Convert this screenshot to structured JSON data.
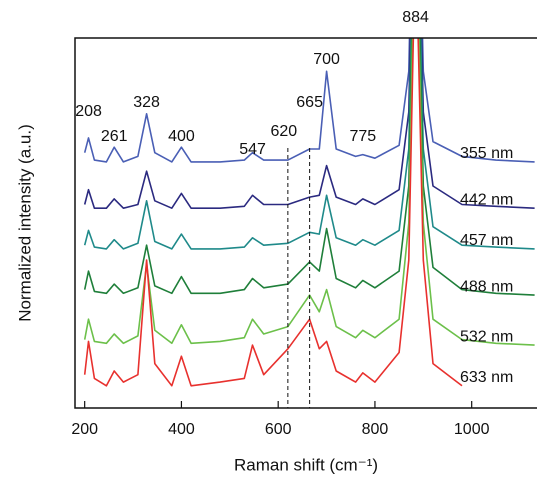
{
  "chart_data": {
    "type": "line",
    "x_label": "Raman shift (cm⁻¹)",
    "y_label": "Normalized intensity (a.u.)",
    "x": [
      200,
      208,
      220,
      245,
      261,
      280,
      310,
      328,
      345,
      380,
      400,
      420,
      480,
      530,
      547,
      570,
      620,
      665,
      685,
      700,
      720,
      760,
      775,
      800,
      850,
      870,
      884,
      900,
      920,
      980,
      1050,
      1130
    ],
    "xlim": [
      180,
      1135
    ],
    "xticks": [
      200,
      400,
      600,
      800,
      1000
    ],
    "ylim": [
      0,
      10
    ],
    "series": [
      {
        "name": "355 nm",
        "color": "#4a5fb5",
        "values": [
          6.9,
          7.3,
          6.7,
          6.65,
          7.05,
          6.65,
          6.8,
          7.95,
          6.9,
          6.65,
          7.05,
          6.65,
          6.65,
          6.7,
          6.9,
          6.7,
          6.7,
          7.0,
          7.0,
          9.1,
          7.0,
          6.8,
          6.85,
          6.75,
          7.1,
          9.1,
          18,
          9.1,
          7.2,
          6.8,
          6.7,
          6.65
        ]
      },
      {
        "name": "442 nm",
        "color": "#2b2a80",
        "values": [
          5.5,
          5.9,
          5.4,
          5.4,
          5.65,
          5.4,
          5.5,
          6.4,
          5.6,
          5.4,
          5.8,
          5.4,
          5.4,
          5.45,
          5.75,
          5.5,
          5.5,
          5.7,
          5.75,
          6.55,
          5.7,
          5.5,
          5.65,
          5.5,
          5.9,
          8,
          17,
          8,
          6,
          5.5,
          5.45,
          5.4
        ]
      },
      {
        "name": "457 nm",
        "color": "#1f8a8a",
        "values": [
          4.4,
          4.8,
          4.35,
          4.3,
          4.55,
          4.3,
          4.45,
          5.6,
          4.5,
          4.3,
          4.7,
          4.3,
          4.3,
          4.35,
          4.6,
          4.4,
          4.45,
          4.75,
          4.7,
          5.75,
          4.6,
          4.4,
          4.55,
          4.4,
          4.8,
          7,
          16,
          7,
          4.9,
          4.4,
          4.35,
          4.3
        ]
      },
      {
        "name": "488 nm",
        "color": "#1f7f3a",
        "values": [
          3.2,
          3.7,
          3.15,
          3.1,
          3.35,
          3.1,
          3.25,
          4.4,
          3.3,
          3.1,
          3.55,
          3.1,
          3.1,
          3.2,
          3.5,
          3.25,
          3.35,
          3.95,
          3.7,
          4.85,
          3.5,
          3.25,
          3.45,
          3.25,
          3.7,
          6,
          15,
          6,
          3.8,
          3.2,
          3.1,
          3.05
        ]
      },
      {
        "name": "532 nm",
        "color": "#6cc04a",
        "values": [
          1.85,
          2.4,
          1.8,
          1.75,
          2.0,
          1.75,
          1.95,
          3.9,
          2.1,
          1.75,
          2.25,
          1.75,
          1.8,
          1.9,
          2.4,
          2.0,
          2.2,
          3.05,
          2.6,
          3.2,
          2.2,
          1.9,
          2.1,
          1.9,
          2.4,
          5,
          14,
          5,
          2.4,
          1.85,
          1.75,
          1.7
        ]
      },
      {
        "name": "633 nm",
        "color": "#e8312e",
        "values": [
          0.9,
          1.8,
          0.8,
          0.6,
          1.0,
          0.7,
          0.9,
          4.0,
          1.2,
          0.6,
          1.4,
          0.6,
          0.7,
          0.8,
          1.7,
          0.9,
          1.6,
          2.4,
          1.6,
          1.8,
          1.0,
          0.7,
          0.95,
          0.7,
          1.5,
          4,
          13,
          4,
          1.2,
          0.6,
          null,
          null
        ]
      }
    ],
    "annotations": [
      {
        "label": "208",
        "x": 208
      },
      {
        "label": "261",
        "x": 261
      },
      {
        "label": "328",
        "x": 328
      },
      {
        "label": "400",
        "x": 400
      },
      {
        "label": "547",
        "x": 547
      },
      {
        "label": "620",
        "x": 620,
        "dashed": true
      },
      {
        "label": "665",
        "x": 665,
        "dashed": true
      },
      {
        "label": "700",
        "x": 700
      },
      {
        "label": "775",
        "x": 775
      },
      {
        "label": "884",
        "x": 884
      }
    ]
  }
}
